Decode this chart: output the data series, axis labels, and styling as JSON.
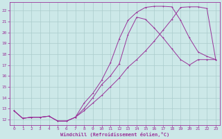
{
  "xlabel": "Windchill (Refroidissement éolien,°C)",
  "background_color": "#cce8e8",
  "grid_color": "#aacccc",
  "line_color": "#993399",
  "xlim": [
    -0.5,
    23.5
  ],
  "ylim": [
    11.5,
    22.8
  ],
  "xticks": [
    0,
    1,
    2,
    3,
    4,
    5,
    6,
    7,
    8,
    9,
    10,
    11,
    12,
    13,
    14,
    15,
    16,
    17,
    18,
    19,
    20,
    21,
    22,
    23
  ],
  "yticks": [
    12,
    13,
    14,
    15,
    16,
    17,
    18,
    19,
    20,
    21,
    22
  ],
  "line1_x": [
    0,
    1,
    2,
    3,
    4,
    5,
    6,
    7,
    8,
    9,
    10,
    11,
    12,
    13,
    14,
    15,
    16,
    17,
    18,
    19,
    20,
    21,
    22,
    23
  ],
  "line1_y": [
    12.8,
    12.1,
    12.2,
    12.2,
    12.3,
    11.85,
    11.85,
    12.2,
    13.5,
    14.4,
    15.6,
    17.2,
    19.4,
    21.1,
    21.85,
    22.3,
    22.4,
    22.4,
    22.35,
    21.1,
    19.5,
    18.2,
    17.8,
    17.5
  ],
  "line2_x": [
    0,
    1,
    2,
    3,
    4,
    5,
    6,
    7,
    8,
    9,
    10,
    11,
    12,
    13,
    14,
    15,
    16,
    17,
    18,
    19,
    20,
    21,
    22,
    23
  ],
  "line2_y": [
    12.8,
    12.1,
    12.2,
    12.2,
    12.3,
    11.85,
    11.85,
    12.2,
    13.0,
    14.0,
    15.2,
    16.0,
    17.1,
    19.8,
    21.4,
    21.2,
    20.4,
    19.5,
    18.5,
    17.5,
    17.0,
    17.5,
    17.5,
    17.5
  ],
  "line3_x": [
    0,
    1,
    2,
    3,
    4,
    5,
    6,
    7,
    8,
    9,
    10,
    11,
    12,
    13,
    14,
    15,
    16,
    17,
    18,
    19,
    20,
    21,
    22,
    23
  ],
  "line3_y": [
    12.8,
    12.1,
    12.2,
    12.2,
    12.3,
    11.85,
    11.85,
    12.2,
    12.8,
    13.5,
    14.2,
    15.0,
    15.8,
    16.8,
    17.5,
    18.3,
    19.2,
    20.2,
    21.2,
    22.3,
    22.35,
    22.35,
    22.2,
    17.5
  ]
}
